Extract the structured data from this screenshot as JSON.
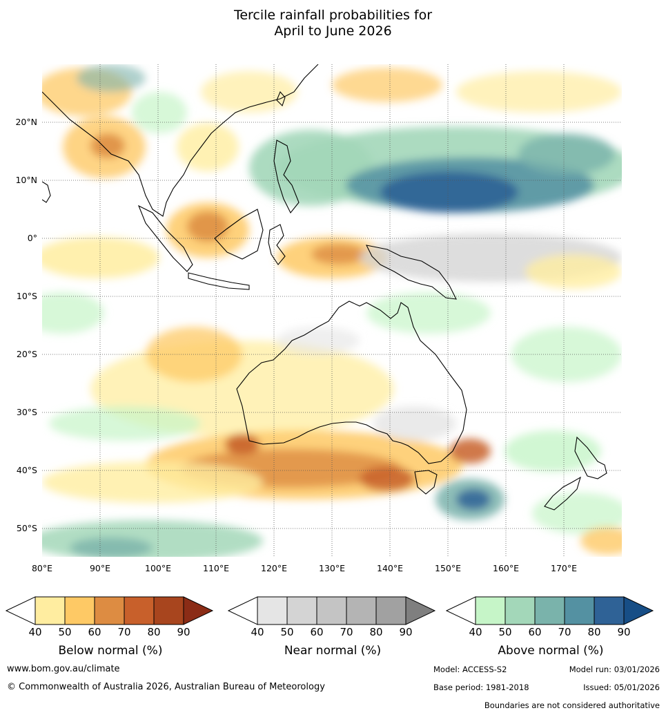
{
  "title_line1": "Tercile rainfall probabilities for",
  "title_line2": "April to June 2026",
  "lat_labels": [
    "20°N",
    "10°N",
    "0°",
    "10°S",
    "20°S",
    "30°S",
    "40°S",
    "50°S"
  ],
  "lon_labels": [
    "80°E",
    "90°E",
    "100°E",
    "110°E",
    "120°E",
    "130°E",
    "140°E",
    "150°E",
    "160°E",
    "170°E"
  ],
  "colorbars": [
    {
      "title": "Below normal (%)",
      "colors": [
        "#ffeda0",
        "#fec965",
        "#dd8c42",
        "#c8602b",
        "#a8451e",
        "#8b2c16"
      ],
      "ticks": [
        "40",
        "50",
        "60",
        "70",
        "80",
        "90"
      ]
    },
    {
      "title": "Near normal (%)",
      "colors": [
        "#e5e5e5",
        "#d4d4d4",
        "#c4c4c4",
        "#b4b4b4",
        "#a1a1a1",
        "#7f7f7f"
      ],
      "ticks": [
        "40",
        "50",
        "60",
        "70",
        "80",
        "90"
      ]
    },
    {
      "title": "Above normal (%)",
      "colors": [
        "#c6f5c8",
        "#a3d7b9",
        "#7ab3ab",
        "#5491a2",
        "#2f6296",
        "#174e86"
      ],
      "ticks": [
        "40",
        "50",
        "60",
        "70",
        "80",
        "90"
      ]
    }
  ],
  "footer": {
    "website": "www.bom.gov.au/climate",
    "copyright": "© Commonwealth of Australia 2026, Australian Bureau of Meteorology",
    "model": "Model: ACCESS-S2",
    "model_run": "Model run: 03/01/2026",
    "base_period": "Base period: 1981-2018",
    "issued": "Issued: 05/01/2026",
    "disclaimer": "Boundaries are not considered authoritative"
  }
}
